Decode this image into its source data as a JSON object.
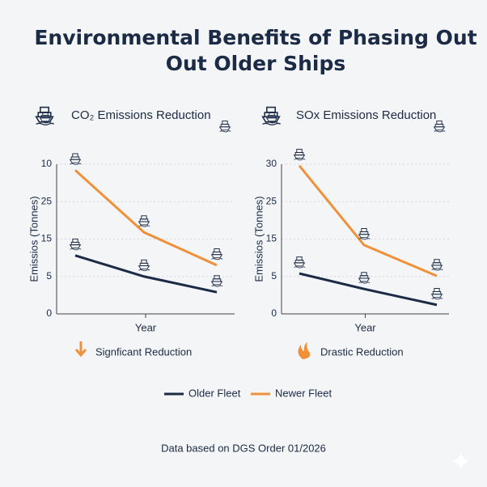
{
  "title": "Environmental Benefits of Phasing Out Out Older Ships",
  "source": "Data based on DGS Order 01/2026",
  "chart_data": [
    {
      "type": "line",
      "subtitle": "CO₂ Emissions Reduction",
      "x_label": "Year",
      "y_label": "Emissios (Tonnes)",
      "categories": [
        null,
        null,
        null
      ],
      "ylim": [
        0,
        20
      ],
      "yticks": [
        0,
        5,
        {
          "value": 10,
          "label": "15"
        },
        {
          "value": 15,
          "label": "25"
        },
        {
          "value": 20,
          "label": "10"
        }
      ],
      "grid": true,
      "annotation": "Signficant Reduction",
      "annotation_icon": "arrow",
      "series": [
        {
          "name": "Older Fleet",
          "color": "#1b2a45",
          "values": [
            7.8,
            5.0,
            2.9
          ]
        },
        {
          "name": "Newer Fleet",
          "color": "#f0913a",
          "values": [
            19.2,
            10.9,
            6.5
          ]
        }
      ]
    },
    {
      "type": "line",
      "subtitle": "SOx Emissions Reduction",
      "x_label": "Year",
      "y_label": "Emissios (Tonnes)",
      "categories": [
        null,
        null,
        null
      ],
      "ylim": [
        0,
        30
      ],
      "yticks": [
        0,
        {
          "value": 7.5,
          "label": "5"
        },
        15,
        {
          "value": 22.5,
          "label": "25"
        },
        30
      ],
      "grid": true,
      "annotation": "Drastic Reduction",
      "annotation_icon": "flame",
      "series": [
        {
          "name": "Older Fleet",
          "color": "#1b2a45",
          "values": [
            8.1,
            5.0,
            1.8
          ]
        },
        {
          "name": "Newer Fleet",
          "color": "#f0913a",
          "values": [
            29.7,
            13.8,
            7.6
          ]
        }
      ]
    }
  ]
}
